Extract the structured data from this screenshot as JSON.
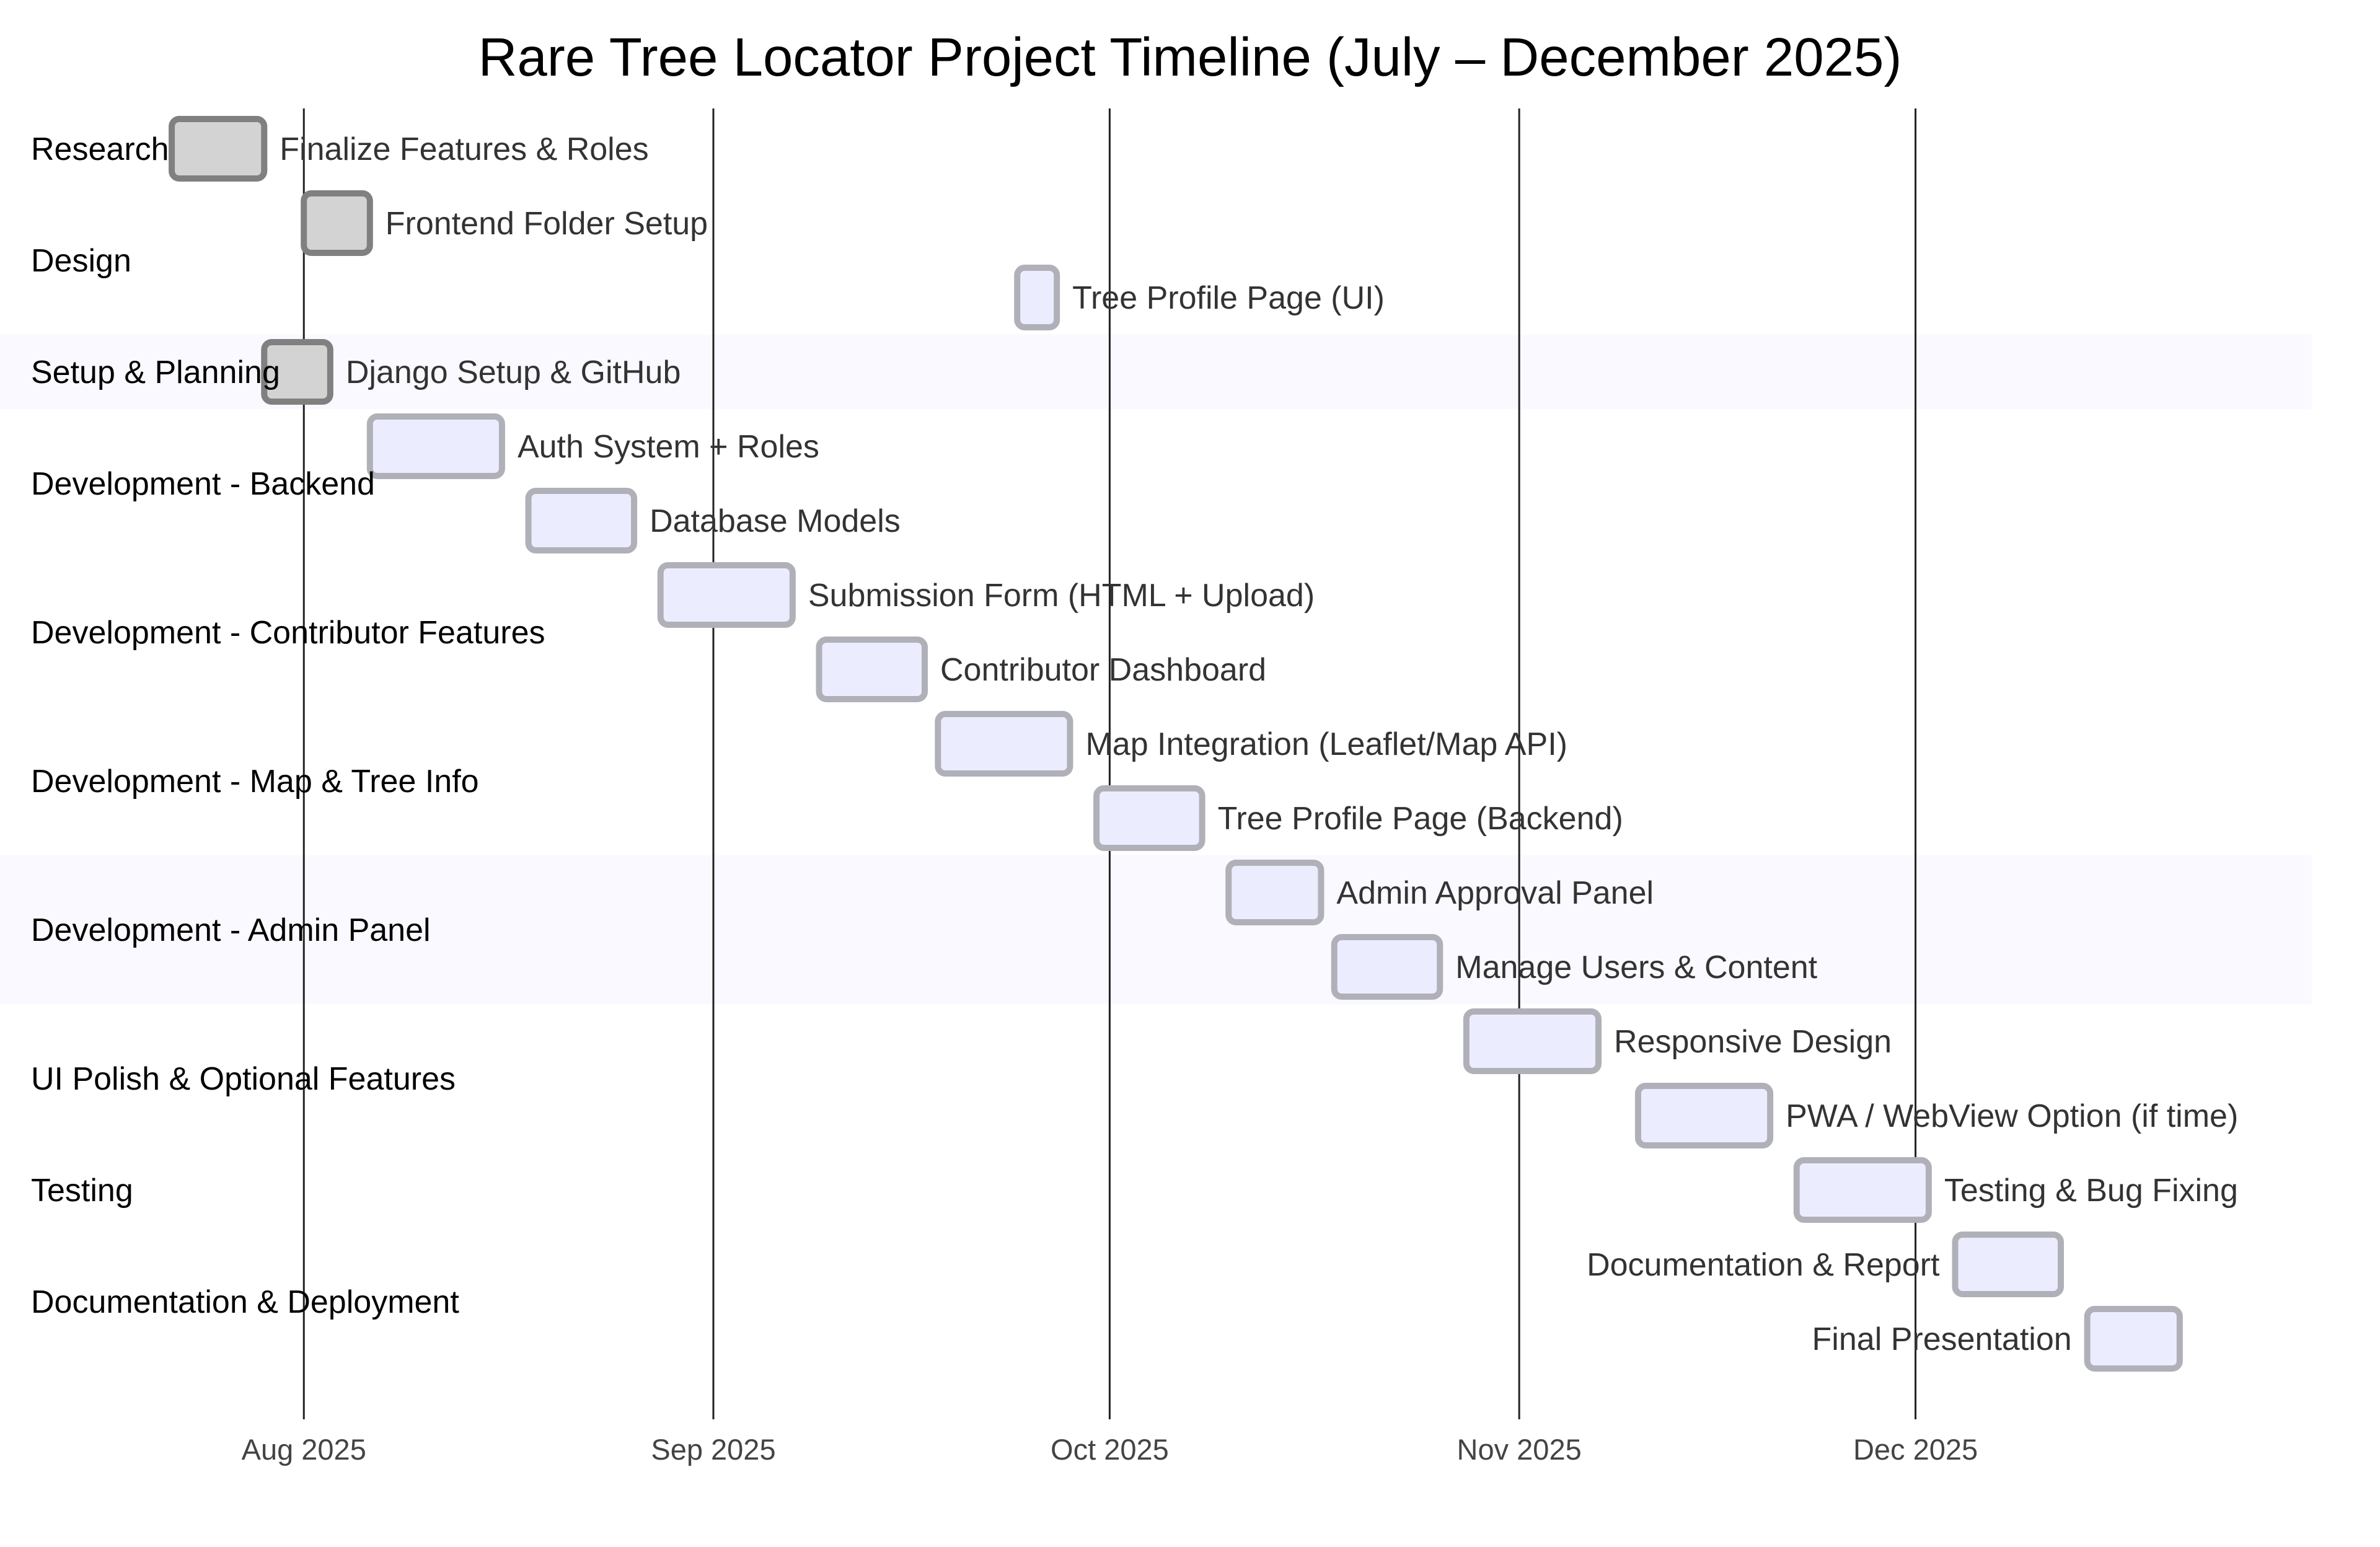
{
  "chart_data": {
    "type": "gantt",
    "title": "Rare Tree Locator Project Timeline (July – December 2025)",
    "x_range": [
      "2025-07-09",
      "2025-12-31"
    ],
    "ticks": [
      {
        "date": "2025-08-01",
        "label": "Aug 2025"
      },
      {
        "date": "2025-09-01",
        "label": "Sep 2025"
      },
      {
        "date": "2025-10-01",
        "label": "Oct 2025"
      },
      {
        "date": "2025-11-01",
        "label": "Nov 2025"
      },
      {
        "date": "2025-12-01",
        "label": "Dec 2025"
      }
    ],
    "colors": {
      "done_fill": "#d3d3d3",
      "done_stroke": "#808080",
      "todo_fill": "#ececff",
      "todo_stroke": "#b0b0b8",
      "band": "#f9f9ff"
    },
    "sections": [
      {
        "name": "Research",
        "band": false,
        "tasks": [
          {
            "name": "Finalize Features & Roles",
            "start": "2025-07-22",
            "end": "2025-07-29",
            "status": "done",
            "label_side": "right"
          }
        ]
      },
      {
        "name": "Design",
        "band": false,
        "tasks": [
          {
            "name": "Frontend Folder Setup",
            "start": "2025-08-01",
            "end": "2025-08-06",
            "status": "done",
            "label_side": "right"
          },
          {
            "name": "Tree Profile Page (UI)",
            "start": "2025-09-24",
            "end": "2025-09-27",
            "status": "todo",
            "label_side": "right"
          }
        ]
      },
      {
        "name": "Setup & Planning",
        "band": true,
        "tasks": [
          {
            "name": "Django Setup & GitHub",
            "start": "2025-07-29",
            "end": "2025-08-03",
            "status": "done",
            "label_side": "right"
          }
        ]
      },
      {
        "name": "Development - Backend",
        "band": false,
        "tasks": [
          {
            "name": "Auth System + Roles",
            "start": "2025-08-06",
            "end": "2025-08-16",
            "status": "todo",
            "label_side": "right"
          },
          {
            "name": "Database Models",
            "start": "2025-08-18",
            "end": "2025-08-26",
            "status": "todo",
            "label_side": "right"
          }
        ]
      },
      {
        "name": "Development - Contributor Features",
        "band": false,
        "tasks": [
          {
            "name": "Submission Form (HTML + Upload)",
            "start": "2025-08-28",
            "end": "2025-09-07",
            "status": "todo",
            "label_side": "right"
          },
          {
            "name": "Contributor Dashboard",
            "start": "2025-09-09",
            "end": "2025-09-17",
            "status": "todo",
            "label_side": "right"
          }
        ]
      },
      {
        "name": "Development - Map & Tree Info",
        "band": false,
        "tasks": [
          {
            "name": "Map Integration (Leaflet/Map API)",
            "start": "2025-09-18",
            "end": "2025-09-28",
            "status": "todo",
            "label_side": "right"
          },
          {
            "name": "Tree Profile Page (Backend)",
            "start": "2025-09-30",
            "end": "2025-10-08",
            "status": "todo",
            "label_side": "right"
          }
        ]
      },
      {
        "name": "Development - Admin Panel",
        "band": true,
        "tasks": [
          {
            "name": "Admin Approval Panel",
            "start": "2025-10-10",
            "end": "2025-10-17",
            "status": "todo",
            "label_side": "right"
          },
          {
            "name": "Manage Users & Content",
            "start": "2025-10-18",
            "end": "2025-10-26",
            "status": "todo",
            "label_side": "right"
          }
        ]
      },
      {
        "name": "UI Polish & Optional Features",
        "band": false,
        "tasks": [
          {
            "name": "Responsive Design",
            "start": "2025-10-28",
            "end": "2025-11-07",
            "status": "todo",
            "label_side": "right"
          },
          {
            "name": "PWA / WebView Option (if time)",
            "start": "2025-11-10",
            "end": "2025-11-20",
            "status": "todo",
            "label_side": "right"
          }
        ]
      },
      {
        "name": "Testing",
        "band": false,
        "tasks": [
          {
            "name": "Testing & Bug Fixing",
            "start": "2025-11-22",
            "end": "2025-12-02",
            "status": "todo",
            "label_side": "right"
          }
        ]
      },
      {
        "name": "Documentation & Deployment",
        "band": false,
        "tasks": [
          {
            "name": "Documentation & Report",
            "start": "2025-12-04",
            "end": "2025-12-12",
            "status": "todo",
            "label_side": "left"
          },
          {
            "name": "Final Presentation",
            "start": "2025-12-14",
            "end": "2025-12-21",
            "status": "todo",
            "label_side": "left"
          }
        ]
      }
    ]
  }
}
